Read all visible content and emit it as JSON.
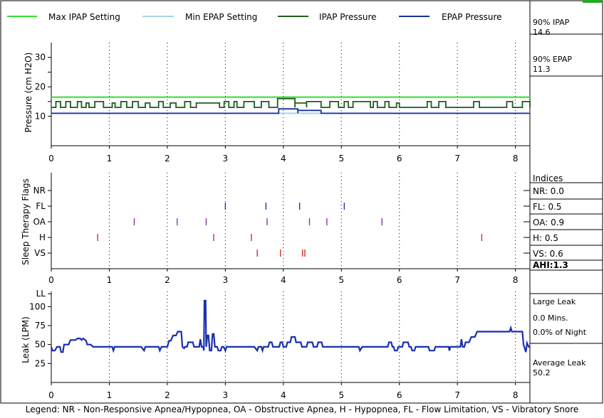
{
  "chart_data": [
    {
      "type": "line",
      "title": "",
      "ylabel": "Pressure (cm H2O)",
      "xlabel": "",
      "x_ticks": [
        0,
        1,
        2,
        3,
        4,
        5,
        6,
        7,
        8
      ],
      "y_ticks": [
        10,
        15,
        20,
        25,
        30
      ],
      "y_tick_labels": [
        "10",
        "20",
        "30"
      ],
      "xlim": [
        0,
        8.25
      ],
      "ylim": [
        0,
        35
      ],
      "legend": [
        "Max IPAP Setting",
        "Min EPAP Setting",
        "IPAP Pressure",
        "EPAP Pressure"
      ],
      "series": [
        {
          "name": "Max IPAP Setting",
          "color": "#33dd33",
          "points": [
            [
              0,
              16.5
            ],
            [
              8.25,
              16.5
            ]
          ]
        },
        {
          "name": "Min EPAP Setting",
          "color": "#a8d4e6",
          "points": [
            [
              0,
              11
            ],
            [
              8.25,
              11
            ]
          ]
        },
        {
          "name": "IPAP Pressure",
          "color": "#1e5c1e",
          "base": 13,
          "bumps": [
            [
              0.08,
              0.16,
              15
            ],
            [
              0.25,
              0.33,
              15
            ],
            [
              0.45,
              0.52,
              15
            ],
            [
              0.6,
              0.65,
              14.5
            ],
            [
              0.75,
              0.9,
              15
            ],
            [
              1.05,
              1.1,
              14.5
            ],
            [
              1.2,
              1.3,
              15
            ],
            [
              1.4,
              1.5,
              15
            ],
            [
              1.62,
              1.7,
              14.5
            ],
            [
              1.85,
              1.93,
              15
            ],
            [
              2.05,
              2.15,
              14.5
            ],
            [
              2.3,
              2.4,
              15
            ],
            [
              2.5,
              2.9,
              14.5
            ],
            [
              2.98,
              3.06,
              15
            ],
            [
              3.15,
              3.2,
              15
            ],
            [
              3.32,
              3.5,
              15
            ],
            [
              3.62,
              3.75,
              15
            ],
            [
              3.9,
              4.2,
              16
            ],
            [
              4.2,
              4.4,
              14.5
            ],
            [
              4.4,
              4.65,
              15
            ],
            [
              4.8,
              4.95,
              15
            ],
            [
              5.05,
              5.12,
              15
            ],
            [
              5.2,
              5.5,
              15
            ],
            [
              5.55,
              5.62,
              15
            ],
            [
              5.75,
              5.82,
              15
            ],
            [
              5.95,
              6.0,
              14.5
            ],
            [
              6.48,
              6.55,
              15
            ],
            [
              6.68,
              6.8,
              15
            ],
            [
              7.28,
              7.38,
              15
            ],
            [
              7.85,
              7.95,
              15
            ],
            [
              8.12,
              8.25,
              15
            ]
          ]
        },
        {
          "name": "EPAP Pressure",
          "color": "#1a30a0",
          "base": 11,
          "bumps": [
            [
              3.92,
              4.25,
              12.5
            ],
            [
              4.25,
              4.65,
              12
            ]
          ]
        }
      ],
      "side_labels": {
        "ipap_label": "90% IPAP",
        "ipap_value": "14.6",
        "epap_label": "90% EPAP",
        "epap_value": "11.3"
      }
    },
    {
      "type": "scatter",
      "ylabel": "Sleep Therapy Flags",
      "x_ticks": [
        0,
        1,
        2,
        3,
        4,
        5,
        6,
        7,
        8
      ],
      "xlim": [
        0,
        8.25
      ],
      "rows": [
        "NR",
        "FL",
        "OA",
        "H",
        "VS"
      ],
      "events": {
        "NR": [],
        "FL": [
          3.0,
          3.7,
          4.28,
          5.05
        ],
        "OA": [
          1.43,
          2.17,
          2.67,
          3.72,
          4.45,
          4.75,
          5.7
        ],
        "H": [
          0.8,
          2.8,
          3.45,
          7.42
        ],
        "VS": [
          3.55,
          3.95,
          4.33,
          4.37
        ]
      },
      "row_colors": {
        "NR": "#000000",
        "FL": "#2233bb",
        "OA": "#8833aa",
        "H": "#cc3322",
        "VS": "#cc3322"
      },
      "indices": {
        "title": "Indices",
        "NR": "NR: 0.0",
        "FL": "FL: 0.5",
        "OA": "OA: 0.9",
        "H": "H: 0.5",
        "VS": "VS: 0.6",
        "AHI": "AHI:1.3"
      }
    },
    {
      "type": "line",
      "ylabel": "Leak (LPM)",
      "x_ticks": [
        0,
        1,
        2,
        3,
        4,
        5,
        6,
        7,
        8
      ],
      "y_tick_labels": [
        "LL",
        "100",
        "75",
        "50",
        "25"
      ],
      "xlim": [
        0,
        8.25
      ],
      "ylim": [
        0,
        120
      ],
      "series": [
        {
          "name": "Leak",
          "color": "#1a2fb0",
          "points": [
            [
              0,
              47
            ],
            [
              0.02,
              42
            ],
            [
              0.06,
              42
            ],
            [
              0.1,
              47
            ],
            [
              0.15,
              47
            ],
            [
              0.17,
              40
            ],
            [
              0.2,
              40
            ],
            [
              0.22,
              50
            ],
            [
              0.3,
              50
            ],
            [
              0.33,
              56
            ],
            [
              0.42,
              56
            ],
            [
              0.45,
              58
            ],
            [
              0.5,
              58
            ],
            [
              0.52,
              56
            ],
            [
              0.55,
              58
            ],
            [
              0.6,
              55
            ],
            [
              0.62,
              50
            ],
            [
              0.68,
              50
            ],
            [
              0.72,
              47
            ],
            [
              0.9,
              47
            ],
            [
              1.05,
              47
            ],
            [
              1.07,
              42
            ],
            [
              1.09,
              47
            ],
            [
              1.4,
              47
            ],
            [
              1.55,
              47
            ],
            [
              1.6,
              42
            ],
            [
              1.62,
              47
            ],
            [
              1.75,
              47
            ],
            [
              1.85,
              47
            ],
            [
              1.87,
              42
            ],
            [
              1.9,
              47
            ],
            [
              2.0,
              47
            ],
            [
              2.03,
              55
            ],
            [
              2.06,
              55
            ],
            [
              2.1,
              62
            ],
            [
              2.15,
              62
            ],
            [
              2.18,
              67
            ],
            [
              2.24,
              67
            ],
            [
              2.26,
              47
            ],
            [
              2.29,
              45
            ],
            [
              2.3,
              47
            ],
            [
              2.34,
              47
            ],
            [
              2.36,
              53
            ],
            [
              2.44,
              53
            ],
            [
              2.46,
              47
            ],
            [
              2.55,
              47
            ],
            [
              2.57,
              57
            ],
            [
              2.59,
              47
            ],
            [
              2.62,
              47
            ],
            [
              2.63,
              42
            ],
            [
              2.64,
              108
            ],
            [
              2.66,
              108
            ],
            [
              2.67,
              47
            ],
            [
              2.69,
              62
            ],
            [
              2.71,
              62
            ],
            [
              2.73,
              42
            ],
            [
              2.76,
              42
            ],
            [
              2.78,
              64
            ],
            [
              2.8,
              64
            ],
            [
              2.82,
              47
            ],
            [
              2.86,
              47
            ],
            [
              2.88,
              42
            ],
            [
              2.92,
              42
            ],
            [
              2.94,
              47
            ],
            [
              2.97,
              47
            ],
            [
              3.0,
              42
            ],
            [
              3.02,
              47
            ],
            [
              3.3,
              47
            ],
            [
              3.5,
              47
            ],
            [
              3.55,
              42
            ],
            [
              3.57,
              47
            ],
            [
              3.62,
              47
            ],
            [
              3.64,
              42
            ],
            [
              3.66,
              47
            ],
            [
              3.74,
              47
            ],
            [
              3.76,
              53
            ],
            [
              3.8,
              53
            ],
            [
              3.82,
              47
            ],
            [
              3.93,
              47
            ],
            [
              3.95,
              53
            ],
            [
              3.98,
              53
            ],
            [
              4.0,
              47
            ],
            [
              4.05,
              47
            ],
            [
              4.07,
              53
            ],
            [
              4.12,
              53
            ],
            [
              4.14,
              60
            ],
            [
              4.2,
              60
            ],
            [
              4.22,
              53
            ],
            [
              4.3,
              53
            ],
            [
              4.32,
              47
            ],
            [
              4.4,
              47
            ],
            [
              4.42,
              53
            ],
            [
              4.5,
              53
            ],
            [
              4.52,
              47
            ],
            [
              4.58,
              47
            ],
            [
              4.6,
              53
            ],
            [
              4.66,
              53
            ],
            [
              4.68,
              47
            ],
            [
              5.2,
              47
            ],
            [
              5.3,
              47
            ],
            [
              5.32,
              42
            ],
            [
              5.36,
              47
            ],
            [
              5.55,
              47
            ],
            [
              5.8,
              47
            ],
            [
              5.82,
              53
            ],
            [
              5.86,
              53
            ],
            [
              5.88,
              47
            ],
            [
              5.9,
              47
            ],
            [
              5.92,
              42
            ],
            [
              5.96,
              42
            ],
            [
              5.98,
              47
            ],
            [
              6.05,
              47
            ],
            [
              6.07,
              53
            ],
            [
              6.15,
              53
            ],
            [
              6.17,
              47
            ],
            [
              6.2,
              47
            ],
            [
              6.22,
              42
            ],
            [
              6.26,
              42
            ],
            [
              6.28,
              47
            ],
            [
              6.45,
              47
            ],
            [
              6.5,
              47
            ],
            [
              6.52,
              42
            ],
            [
              6.6,
              42
            ],
            [
              6.62,
              47
            ],
            [
              6.7,
              47
            ],
            [
              6.85,
              47
            ],
            [
              6.86,
              42
            ],
            [
              6.88,
              47
            ],
            [
              7.0,
              47
            ],
            [
              7.05,
              47
            ],
            [
              7.07,
              57
            ],
            [
              7.09,
              47
            ],
            [
              7.12,
              47
            ],
            [
              7.14,
              53
            ],
            [
              7.2,
              53
            ],
            [
              7.24,
              60
            ],
            [
              7.3,
              60
            ],
            [
              7.34,
              67
            ],
            [
              7.9,
              67
            ],
            [
              7.92,
              72
            ],
            [
              7.94,
              67
            ],
            [
              8.12,
              67
            ],
            [
              8.14,
              50
            ],
            [
              8.18,
              40
            ],
            [
              8.2,
              52
            ],
            [
              8.23,
              47
            ],
            [
              8.25,
              47
            ]
          ]
        }
      ],
      "side_labels": {
        "large_leak_title": "Large Leak",
        "large_leak_mins": "0.0 Mins.",
        "large_leak_pct": "0.0% of Night",
        "avg_leak_title": "Average Leak",
        "avg_leak_value": "50.2"
      }
    }
  ],
  "legend_text": "Legend: NR - Non-Responsive Apnea/Hypopnea, OA - Obstructive Apnea, H - Hypopnea, FL - Flow Limitation, VS - Vibratory Snore"
}
